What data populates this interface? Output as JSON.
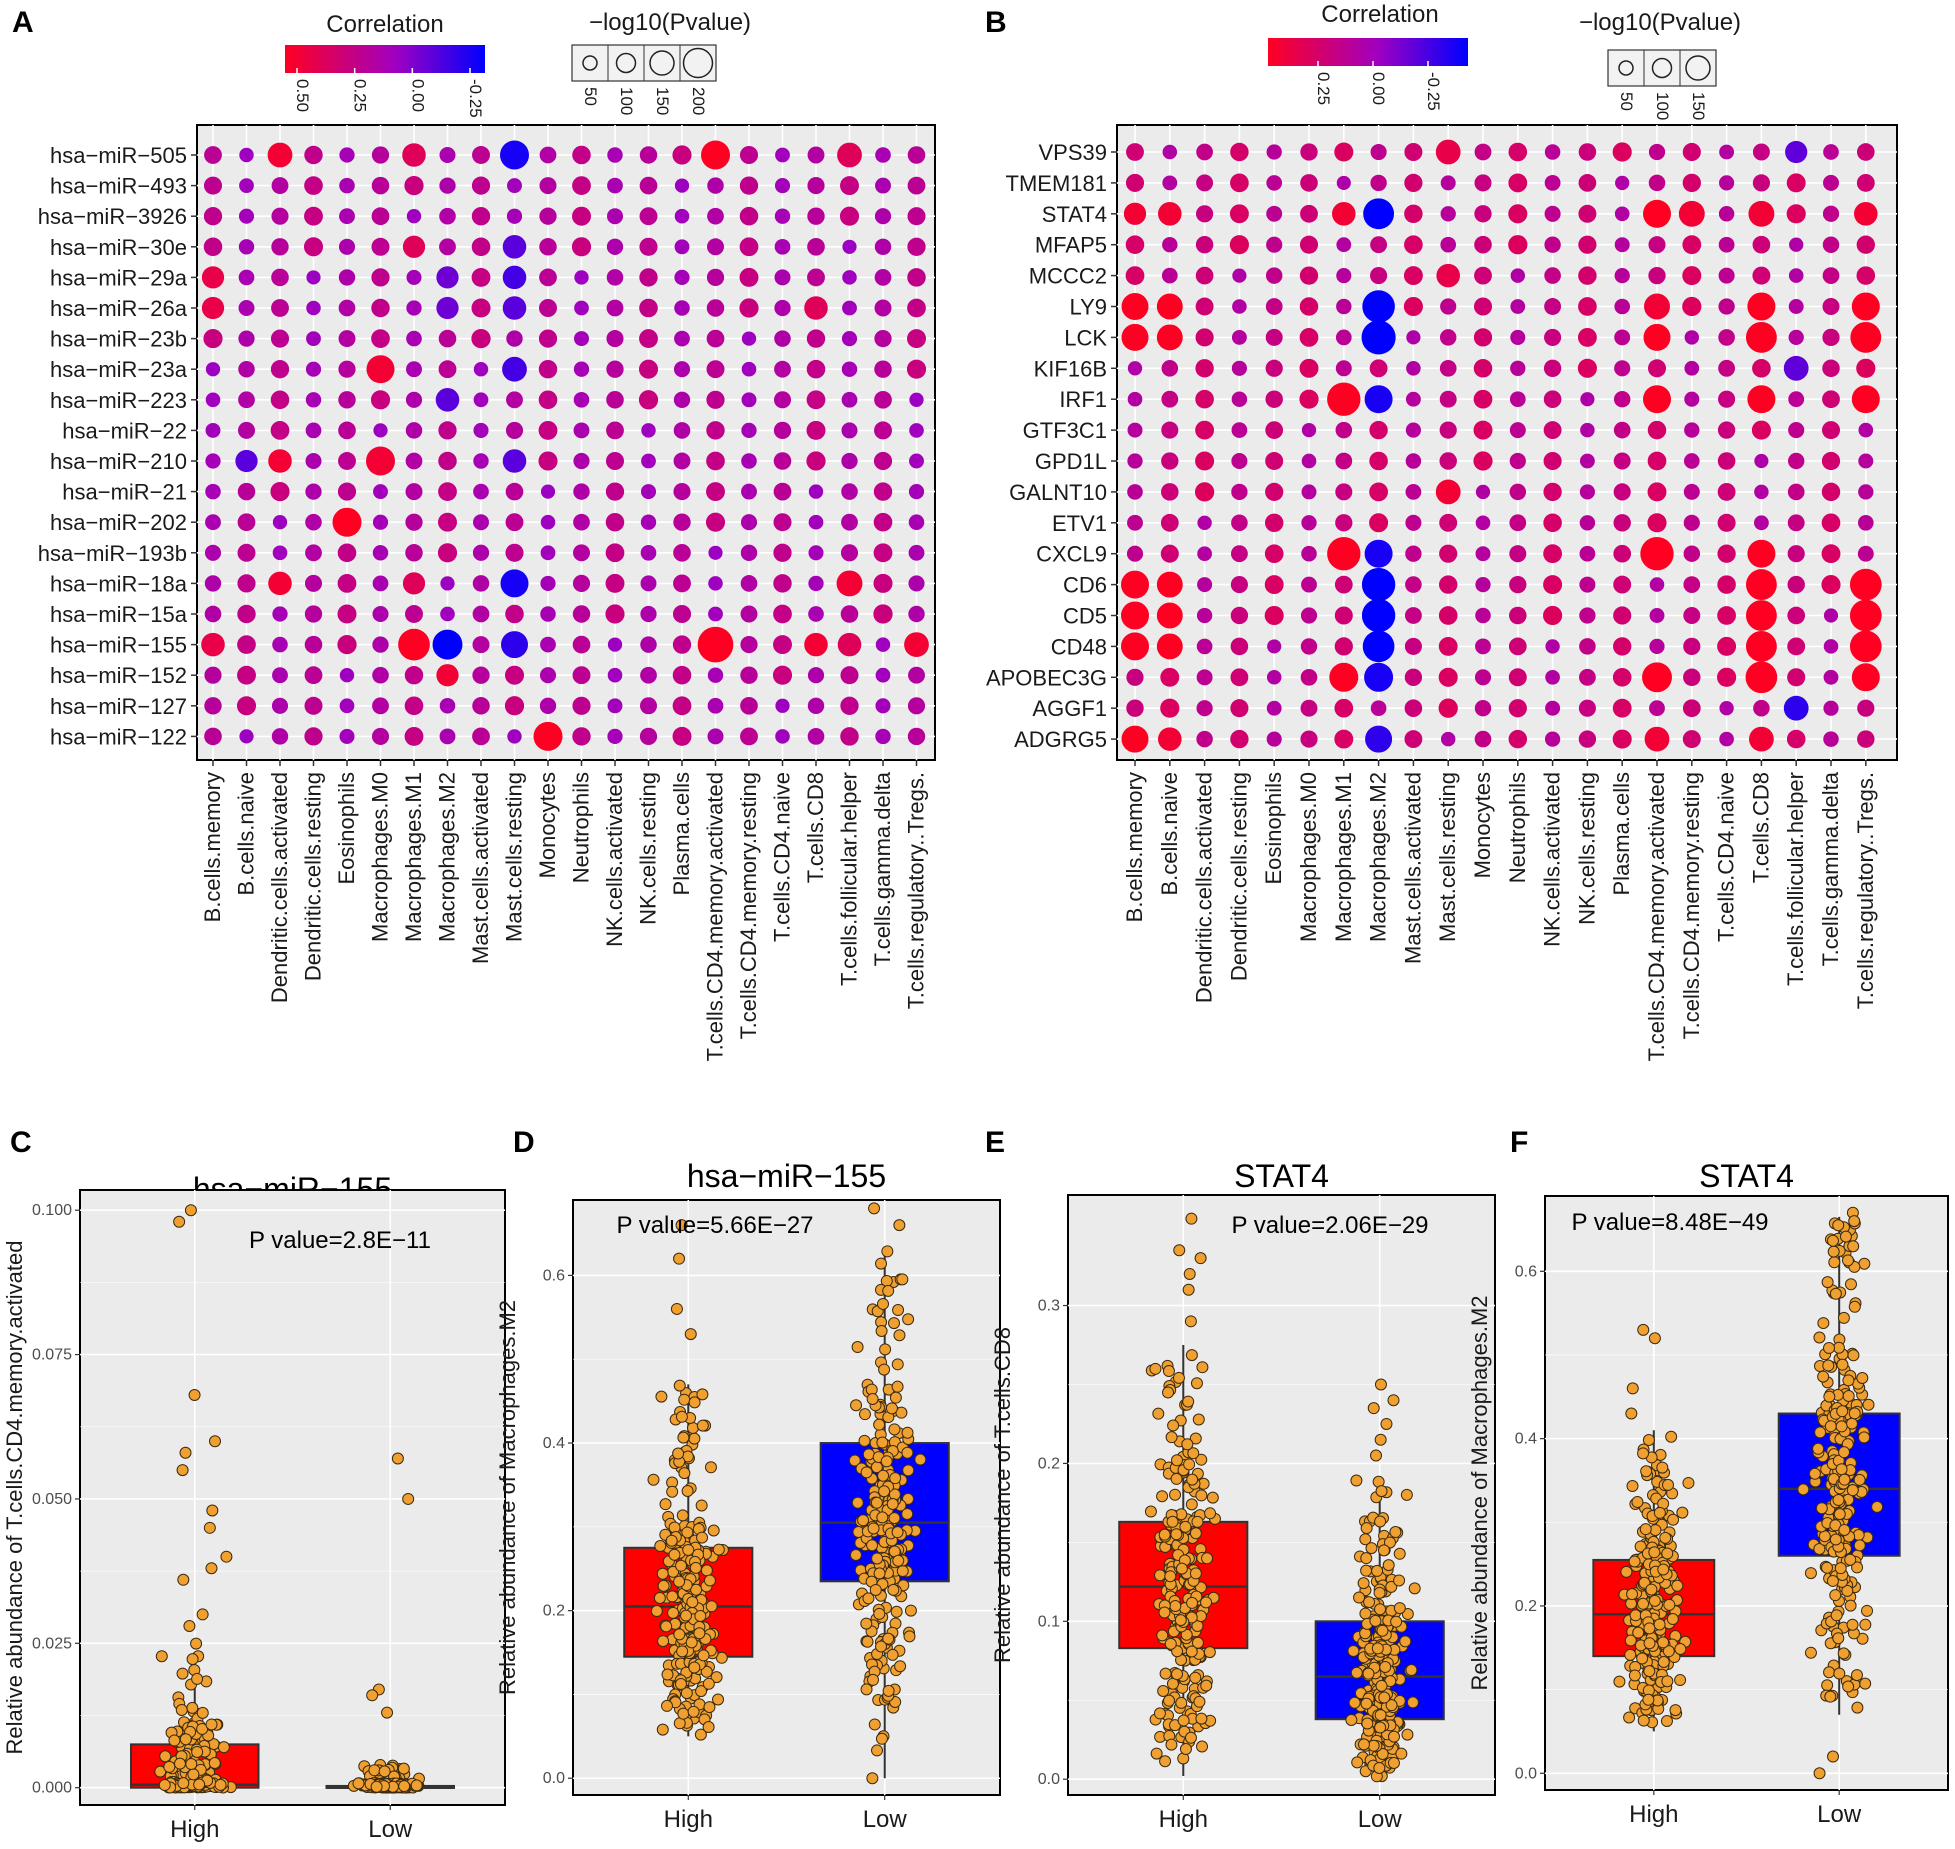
{
  "colors": {
    "red": "#ff0000",
    "purple": "#a000b4",
    "blue": "#0000ff",
    "panel_bg": "#ebebeb",
    "grid": "#ffffff",
    "point_fill": "#f0a030",
    "point_stroke": "#3a2a10"
  },
  "chart_data": [
    {
      "id": "A",
      "type": "scatter",
      "subtype": "bubble-matrix",
      "panel_letter": "A",
      "legend_color_title": "Correlation",
      "legend_color_ticks": [
        "0.50",
        "0.25",
        "0.00",
        "-0.25"
      ],
      "legend_color_range": [
        0.5,
        -0.3
      ],
      "legend_size_title": "−log10(Pvalue)",
      "legend_size_ticks": [
        "50",
        "100",
        "150",
        "200"
      ],
      "rows": [
        "hsa−miR−505",
        "hsa−miR−493",
        "hsa−miR−3926",
        "hsa−miR−30e",
        "hsa−miR−29a",
        "hsa−miR−26a",
        "hsa−miR−23b",
        "hsa−miR−23a",
        "hsa−miR−223",
        "hsa−miR−22",
        "hsa−miR−210",
        "hsa−miR−21",
        "hsa−miR−202",
        "hsa−miR−193b",
        "hsa−miR−18a",
        "hsa−miR−15a",
        "hsa−miR−155",
        "hsa−miR−152",
        "hsa−miR−127",
        "hsa−miR−122"
      ],
      "columns": [
        "B.cells.memory",
        "B.cells.naive",
        "Dendritic.cells.activated",
        "Dendritic.cells.resting",
        "Eosinophils",
        "Macrophages.M0",
        "Macrophages.M1",
        "Macrophages.M2",
        "Mast.cells.activated",
        "Mast.cells.resting",
        "Monocytes",
        "Neutrophils",
        "NK.cells.activated",
        "NK.cells.resting",
        "Plasma.cells",
        "T.cells.CD4.memory.activated",
        "T.cells.CD4.memory.resting",
        "T.cells.CD4.naive",
        "T.cells.CD8",
        "T.cells.follicular.helper",
        "T.cells.gamma.delta",
        "T.cells.regulatory..Tregs."
      ],
      "highlights": [
        {
          "row": 0,
          "col": 2,
          "corr": 0.45,
          "logp": 80
        },
        {
          "row": 0,
          "col": 6,
          "corr": 0.35,
          "logp": 70
        },
        {
          "row": 0,
          "col": 9,
          "corr": -0.25,
          "logp": 120
        },
        {
          "row": 0,
          "col": 15,
          "corr": 0.5,
          "logp": 120
        },
        {
          "row": 0,
          "col": 19,
          "corr": 0.35,
          "logp": 80
        },
        {
          "row": 3,
          "col": 6,
          "corr": 0.35,
          "logp": 60
        },
        {
          "row": 3,
          "col": 9,
          "corr": -0.1,
          "logp": 70
        },
        {
          "row": 4,
          "col": 0,
          "corr": 0.4,
          "logp": 60
        },
        {
          "row": 4,
          "col": 7,
          "corr": -0.05,
          "logp": 60
        },
        {
          "row": 4,
          "col": 9,
          "corr": -0.15,
          "logp": 70
        },
        {
          "row": 5,
          "col": 0,
          "corr": 0.4,
          "logp": 60
        },
        {
          "row": 5,
          "col": 7,
          "corr": -0.05,
          "logp": 60
        },
        {
          "row": 5,
          "col": 9,
          "corr": -0.1,
          "logp": 70
        },
        {
          "row": 5,
          "col": 18,
          "corr": 0.35,
          "logp": 70
        },
        {
          "row": 7,
          "col": 5,
          "corr": 0.45,
          "logp": 110
        },
        {
          "row": 7,
          "col": 9,
          "corr": -0.15,
          "logp": 80
        },
        {
          "row": 8,
          "col": 7,
          "corr": -0.1,
          "logp": 70
        },
        {
          "row": 10,
          "col": 1,
          "corr": -0.1,
          "logp": 60
        },
        {
          "row": 10,
          "col": 2,
          "corr": 0.45,
          "logp": 70
        },
        {
          "row": 10,
          "col": 5,
          "corr": 0.45,
          "logp": 120
        },
        {
          "row": 10,
          "col": 9,
          "corr": -0.1,
          "logp": 70
        },
        {
          "row": 12,
          "col": 4,
          "corr": 0.5,
          "logp": 120
        },
        {
          "row": 14,
          "col": 2,
          "corr": 0.45,
          "logp": 70
        },
        {
          "row": 14,
          "col": 6,
          "corr": 0.35,
          "logp": 60
        },
        {
          "row": 14,
          "col": 9,
          "corr": -0.25,
          "logp": 110
        },
        {
          "row": 14,
          "col": 19,
          "corr": 0.45,
          "logp": 90
        },
        {
          "row": 16,
          "col": 0,
          "corr": 0.4,
          "logp": 70
        },
        {
          "row": 16,
          "col": 6,
          "corr": 0.5,
          "logp": 150
        },
        {
          "row": 16,
          "col": 7,
          "corr": -0.3,
          "logp": 130
        },
        {
          "row": 16,
          "col": 9,
          "corr": -0.2,
          "logp": 100
        },
        {
          "row": 16,
          "col": 15,
          "corr": 0.5,
          "logp": 200
        },
        {
          "row": 16,
          "col": 18,
          "corr": 0.45,
          "logp": 70
        },
        {
          "row": 16,
          "col": 19,
          "corr": 0.35,
          "logp": 70
        },
        {
          "row": 16,
          "col": 21,
          "corr": 0.45,
          "logp": 80
        },
        {
          "row": 17,
          "col": 7,
          "corr": 0.45,
          "logp": 60
        },
        {
          "row": 19,
          "col": 10,
          "corr": 0.5,
          "logp": 120
        }
      ]
    },
    {
      "id": "B",
      "type": "scatter",
      "subtype": "bubble-matrix",
      "panel_letter": "B",
      "legend_color_title": "Correlation",
      "legend_color_ticks": [
        "0.25",
        "0.00",
        "-0.25"
      ],
      "legend_color_range": [
        0.4,
        -0.35
      ],
      "legend_size_title": "−log10(Pvalue)",
      "legend_size_ticks": [
        "50",
        "100",
        "150"
      ],
      "rows": [
        "VPS39",
        "TMEM181",
        "STAT4",
        "MFAP5",
        "MCCC2",
        "LY9",
        "LCK",
        "KIF16B",
        "IRF1",
        "GTF3C1",
        "GPD1L",
        "GALNT10",
        "ETV1",
        "CXCL9",
        "CD6",
        "CD5",
        "CD48",
        "APOBEC3G",
        "AGGF1",
        "ADGRG5"
      ],
      "columns": [
        "B.cells.memory",
        "B.cells.naive",
        "Dendritic.cells.activated",
        "Dendritic.cells.resting",
        "Eosinophils",
        "Macrophages.M0",
        "Macrophages.M1",
        "Macrophages.M2",
        "Mast.cells.activated",
        "Mast.cells.resting",
        "Monocytes",
        "Neutrophils",
        "NK.cells.activated",
        "NK.cells.resting",
        "Plasma.cells",
        "T.cells.CD4.memory.activated",
        "T.cells.CD4.memory.resting",
        "T.cells.CD4.naive",
        "T.cells.CD8",
        "T.cells.follicular.helper",
        "T.cells.gamma.delta",
        "T.cells.regulatory..Tregs."
      ],
      "highlights": [
        {
          "row": 0,
          "col": 9,
          "corr": 0.3,
          "logp": 80
        },
        {
          "row": 0,
          "col": 19,
          "corr": -0.15,
          "logp": 60
        },
        {
          "row": 2,
          "col": 0,
          "corr": 0.35,
          "logp": 60
        },
        {
          "row": 2,
          "col": 1,
          "corr": 0.35,
          "logp": 70
        },
        {
          "row": 2,
          "col": 6,
          "corr": 0.35,
          "logp": 70
        },
        {
          "row": 2,
          "col": 7,
          "corr": -0.35,
          "logp": 140
        },
        {
          "row": 2,
          "col": 15,
          "corr": 0.4,
          "logp": 110
        },
        {
          "row": 2,
          "col": 16,
          "corr": 0.35,
          "logp": 90
        },
        {
          "row": 2,
          "col": 18,
          "corr": 0.35,
          "logp": 90
        },
        {
          "row": 2,
          "col": 21,
          "corr": 0.35,
          "logp": 70
        },
        {
          "row": 4,
          "col": 9,
          "corr": 0.3,
          "logp": 70
        },
        {
          "row": 5,
          "col": 0,
          "corr": 0.4,
          "logp": 100
        },
        {
          "row": 5,
          "col": 1,
          "corr": 0.4,
          "logp": 90
        },
        {
          "row": 5,
          "col": 7,
          "corr": -0.35,
          "logp": 160
        },
        {
          "row": 5,
          "col": 15,
          "corr": 0.35,
          "logp": 90
        },
        {
          "row": 5,
          "col": 18,
          "corr": 0.4,
          "logp": 110
        },
        {
          "row": 5,
          "col": 21,
          "corr": 0.4,
          "logp": 110
        },
        {
          "row": 6,
          "col": 0,
          "corr": 0.4,
          "logp": 100
        },
        {
          "row": 6,
          "col": 1,
          "corr": 0.4,
          "logp": 90
        },
        {
          "row": 6,
          "col": 7,
          "corr": -0.4,
          "logp": 180
        },
        {
          "row": 6,
          "col": 15,
          "corr": 0.4,
          "logp": 100
        },
        {
          "row": 6,
          "col": 18,
          "corr": 0.45,
          "logp": 140
        },
        {
          "row": 6,
          "col": 21,
          "corr": 0.45,
          "logp": 140
        },
        {
          "row": 7,
          "col": 19,
          "corr": -0.15,
          "logp": 80
        },
        {
          "row": 8,
          "col": 6,
          "corr": 0.45,
          "logp": 170
        },
        {
          "row": 8,
          "col": 7,
          "corr": -0.3,
          "logp": 110
        },
        {
          "row": 8,
          "col": 15,
          "corr": 0.4,
          "logp": 110
        },
        {
          "row": 8,
          "col": 18,
          "corr": 0.4,
          "logp": 110
        },
        {
          "row": 8,
          "col": 21,
          "corr": 0.4,
          "logp": 110
        },
        {
          "row": 11,
          "col": 9,
          "corr": 0.35,
          "logp": 80
        },
        {
          "row": 13,
          "col": 6,
          "corr": 0.45,
          "logp": 170
        },
        {
          "row": 13,
          "col": 7,
          "corr": -0.3,
          "logp": 110
        },
        {
          "row": 13,
          "col": 15,
          "corr": 0.45,
          "logp": 170
        },
        {
          "row": 13,
          "col": 18,
          "corr": 0.4,
          "logp": 110
        },
        {
          "row": 14,
          "col": 0,
          "corr": 0.4,
          "logp": 110
        },
        {
          "row": 14,
          "col": 1,
          "corr": 0.4,
          "logp": 90
        },
        {
          "row": 14,
          "col": 7,
          "corr": -0.4,
          "logp": 170
        },
        {
          "row": 14,
          "col": 18,
          "corr": 0.45,
          "logp": 140
        },
        {
          "row": 14,
          "col": 21,
          "corr": 0.45,
          "logp": 150
        },
        {
          "row": 15,
          "col": 0,
          "corr": 0.4,
          "logp": 110
        },
        {
          "row": 15,
          "col": 1,
          "corr": 0.4,
          "logp": 90
        },
        {
          "row": 15,
          "col": 7,
          "corr": -0.4,
          "logp": 170
        },
        {
          "row": 15,
          "col": 18,
          "corr": 0.45,
          "logp": 140
        },
        {
          "row": 15,
          "col": 21,
          "corr": 0.45,
          "logp": 150
        },
        {
          "row": 16,
          "col": 0,
          "corr": 0.4,
          "logp": 110
        },
        {
          "row": 16,
          "col": 1,
          "corr": 0.4,
          "logp": 90
        },
        {
          "row": 16,
          "col": 7,
          "corr": -0.35,
          "logp": 150
        },
        {
          "row": 16,
          "col": 18,
          "corr": 0.45,
          "logp": 140
        },
        {
          "row": 16,
          "col": 21,
          "corr": 0.45,
          "logp": 150
        },
        {
          "row": 17,
          "col": 6,
          "corr": 0.4,
          "logp": 120
        },
        {
          "row": 17,
          "col": 7,
          "corr": -0.3,
          "logp": 120
        },
        {
          "row": 17,
          "col": 15,
          "corr": 0.45,
          "logp": 130
        },
        {
          "row": 17,
          "col": 18,
          "corr": 0.45,
          "logp": 150
        },
        {
          "row": 17,
          "col": 21,
          "corr": 0.4,
          "logp": 110
        },
        {
          "row": 18,
          "col": 19,
          "corr": -0.25,
          "logp": 80
        },
        {
          "row": 19,
          "col": 0,
          "corr": 0.4,
          "logp": 100
        },
        {
          "row": 19,
          "col": 1,
          "corr": 0.35,
          "logp": 70
        },
        {
          "row": 19,
          "col": 7,
          "corr": -0.25,
          "logp": 100
        },
        {
          "row": 19,
          "col": 15,
          "corr": 0.35,
          "logp": 80
        },
        {
          "row": 19,
          "col": 18,
          "corr": 0.35,
          "logp": 80
        }
      ]
    },
    {
      "id": "C",
      "type": "boxplot",
      "panel_letter": "C",
      "title": "hsa−miR−155",
      "ylabel": "Relative abundance of T.cells.CD4.memory.activated",
      "annotation": "P value=2.8E−11",
      "categories": [
        "High",
        "Low"
      ],
      "ylim": [
        -0.003,
        0.1035
      ],
      "yticks": [
        0,
        0.025,
        0.05,
        0.075,
        0.1
      ],
      "ytick_labels": [
        "0.000",
        "0.025",
        "0.050",
        "0.075",
        "0.100"
      ],
      "boxes": [
        {
          "q1": 0,
          "median": 0.0005,
          "q3": 0.0075,
          "whisker_low": 0,
          "whisker_high": 0.0185,
          "color": "#ff0000"
        },
        {
          "q1": 0,
          "median": 0,
          "q3": 0.0003,
          "whisker_low": 0,
          "whisker_high": 0.0008,
          "color": "#0000ff"
        }
      ],
      "outliers": [
        [
          0.1,
          0.098,
          0.068,
          0.06,
          0.058,
          0.055,
          0.048,
          0.045,
          0.04,
          0.038,
          0.036,
          0.03,
          0.028
        ],
        [
          0.057,
          0.05,
          0.017,
          0.016,
          0.013
        ]
      ]
    },
    {
      "id": "D",
      "type": "boxplot",
      "panel_letter": "D",
      "title": "hsa−miR−155",
      "ylabel": "Relative abundance of Macrophages.M2",
      "annotation": "P value=5.66E−27",
      "categories": [
        "High",
        "Low"
      ],
      "ylim": [
        -0.02,
        0.69
      ],
      "yticks": [
        0,
        0.2,
        0.4,
        0.6
      ],
      "ytick_labels": [
        "0.0",
        "0.2",
        "0.4",
        "0.6"
      ],
      "boxes": [
        {
          "q1": 0.145,
          "median": 0.205,
          "q3": 0.275,
          "whisker_low": 0.05,
          "whisker_high": 0.47,
          "color": "#ff0000"
        },
        {
          "q1": 0.235,
          "median": 0.305,
          "q3": 0.4,
          "whisker_low": 0.0,
          "whisker_high": 0.63,
          "color": "#0000ff"
        }
      ],
      "outliers": [
        [
          0.66,
          0.62,
          0.56,
          0.53
        ],
        [
          0.68,
          0.66,
          0.0
        ]
      ]
    },
    {
      "id": "E",
      "type": "boxplot",
      "panel_letter": "E",
      "title": "STAT4",
      "ylabel": "Relative abundance of T.cells.CD8",
      "annotation": "P value=2.06E−29",
      "categories": [
        "High",
        "Low"
      ],
      "ylim": [
        -0.01,
        0.37
      ],
      "yticks": [
        0,
        0.1,
        0.2,
        0.3
      ],
      "ytick_labels": [
        "0.0",
        "0.1",
        "0.2",
        "0.3"
      ],
      "boxes": [
        {
          "q1": 0.083,
          "median": 0.122,
          "q3": 0.163,
          "whisker_low": 0.002,
          "whisker_high": 0.275,
          "color": "#ff0000"
        },
        {
          "q1": 0.038,
          "median": 0.065,
          "q3": 0.1,
          "whisker_low": 0,
          "whisker_high": 0.192,
          "color": "#0000ff"
        }
      ],
      "outliers": [
        [
          0.355,
          0.335,
          0.33,
          0.32,
          0.31,
          0.29
        ],
        [
          0.25,
          0.24,
          0.235,
          0.225,
          0.215,
          0.205
        ]
      ]
    },
    {
      "id": "F",
      "type": "boxplot",
      "panel_letter": "F",
      "title": "STAT4",
      "ylabel": "Relative abundance of Macrophages.M2",
      "annotation": "P value=8.48E−49",
      "categories": [
        "High",
        "Low"
      ],
      "ylim": [
        -0.02,
        0.69
      ],
      "yticks": [
        0,
        0.2,
        0.4,
        0.6
      ],
      "ytick_labels": [
        "0.0",
        "0.2",
        "0.4",
        "0.6"
      ],
      "boxes": [
        {
          "q1": 0.14,
          "median": 0.19,
          "q3": 0.255,
          "whisker_low": 0.05,
          "whisker_high": 0.41,
          "color": "#ff0000"
        },
        {
          "q1": 0.26,
          "median": 0.34,
          "q3": 0.43,
          "whisker_low": 0.07,
          "whisker_high": 0.665,
          "color": "#0000ff"
        }
      ],
      "outliers": [
        [
          0.53,
          0.52,
          0.46,
          0.43
        ],
        [
          0.67,
          0.66,
          0.63,
          0.02,
          0.0
        ]
      ]
    }
  ]
}
